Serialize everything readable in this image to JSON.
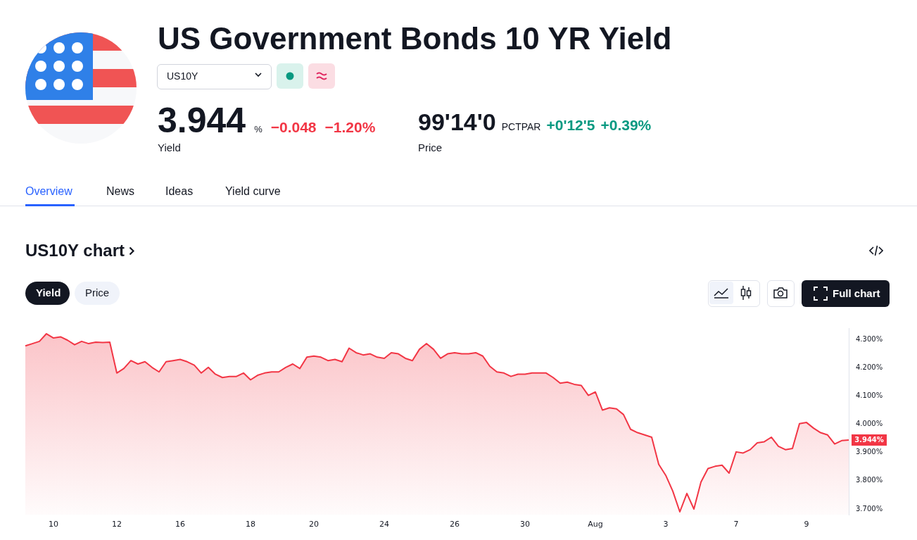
{
  "chart_data": {
    "type": "area",
    "title": "US Government Bonds 10 YR Yield",
    "subtitle": "US10Y chart",
    "categories": [
      null,
      null,
      null,
      null,
      "10",
      null,
      null,
      null,
      null,
      null,
      null,
      null,
      null,
      "12",
      null,
      null,
      null,
      null,
      null,
      null,
      null,
      null,
      "16",
      null,
      null,
      null,
      null,
      null,
      null,
      null,
      null,
      null,
      "18",
      null,
      null,
      null,
      null,
      null,
      null,
      null,
      null,
      "20",
      null,
      null,
      null,
      null,
      null,
      null,
      null,
      null,
      null,
      "24",
      null,
      null,
      null,
      null,
      null,
      null,
      null,
      null,
      null,
      "26",
      null,
      null,
      null,
      null,
      null,
      null,
      null,
      null,
      null,
      "30",
      null,
      null,
      null,
      null,
      null,
      null,
      null,
      null,
      null,
      "Aug",
      null,
      null,
      null,
      null,
      null,
      null,
      null,
      null,
      null,
      "3",
      null,
      null,
      null,
      null,
      null,
      null,
      null,
      null,
      null,
      "7",
      null,
      null,
      null,
      null,
      null,
      null,
      null,
      null,
      null,
      "9",
      null,
      null,
      null,
      null,
      null,
      null
    ],
    "series": [
      {
        "color": "#f23645",
        "values": [
          4.277,
          4.285,
          4.293,
          4.32,
          4.305,
          4.309,
          4.297,
          4.281,
          4.293,
          4.285,
          4.29,
          4.289,
          4.29,
          4.181,
          4.197,
          4.225,
          4.213,
          4.221,
          4.201,
          4.185,
          4.221,
          4.225,
          4.229,
          4.221,
          4.209,
          4.181,
          4.201,
          4.177,
          4.165,
          4.169,
          4.169,
          4.181,
          4.157,
          4.173,
          4.181,
          4.185,
          4.185,
          4.201,
          4.213,
          4.197,
          4.237,
          4.241,
          4.237,
          4.225,
          4.229,
          4.221,
          4.269,
          4.253,
          4.245,
          4.249,
          4.237,
          4.233,
          4.253,
          4.249,
          4.233,
          4.225,
          4.265,
          4.285,
          4.265,
          4.233,
          4.249,
          4.253,
          4.249,
          4.249,
          4.253,
          4.241,
          4.205,
          4.185,
          4.181,
          4.169,
          4.177,
          4.177,
          4.181,
          4.181,
          4.181,
          4.165,
          4.145,
          4.149,
          4.141,
          4.137,
          4.102,
          4.114,
          4.05,
          4.058,
          4.054,
          4.034,
          3.982,
          3.97,
          3.962,
          3.954,
          3.858,
          3.819,
          3.763,
          3.69,
          3.755,
          3.7,
          3.795,
          3.843,
          3.851,
          3.855,
          3.827,
          3.902,
          3.898,
          3.91,
          3.934,
          3.938,
          3.954,
          3.922,
          3.91,
          3.914,
          4.002,
          4.006,
          3.986,
          3.97,
          3.962,
          3.93,
          3.942,
          3.944
        ]
      }
    ],
    "ylim": [
      3.68,
      4.34
    ],
    "yticks": [
      {
        "value": 3.7,
        "label": "3.700%"
      },
      {
        "value": 3.8,
        "label": "3.800%"
      },
      {
        "value": 3.9,
        "label": "3.900%"
      },
      {
        "value": 4.0,
        "label": "4.000%"
      },
      {
        "value": 4.1,
        "label": "4.100%"
      },
      {
        "value": 4.2,
        "label": "4.200%"
      },
      {
        "value": 4.3,
        "label": "4.300%"
      }
    ],
    "grid": false,
    "legend": false,
    "annotations": [
      "US10Y",
      "3.944",
      "%",
      "−0.048",
      "−1.20%",
      "Yield",
      "99'14'0",
      "PCTPAR",
      "+0'12'5",
      "+0.39%",
      "Price",
      "Overview",
      "News",
      "Ideas",
      "Yield curve",
      "Yield",
      "Price",
      "Full chart",
      "3.944%"
    ]
  }
}
